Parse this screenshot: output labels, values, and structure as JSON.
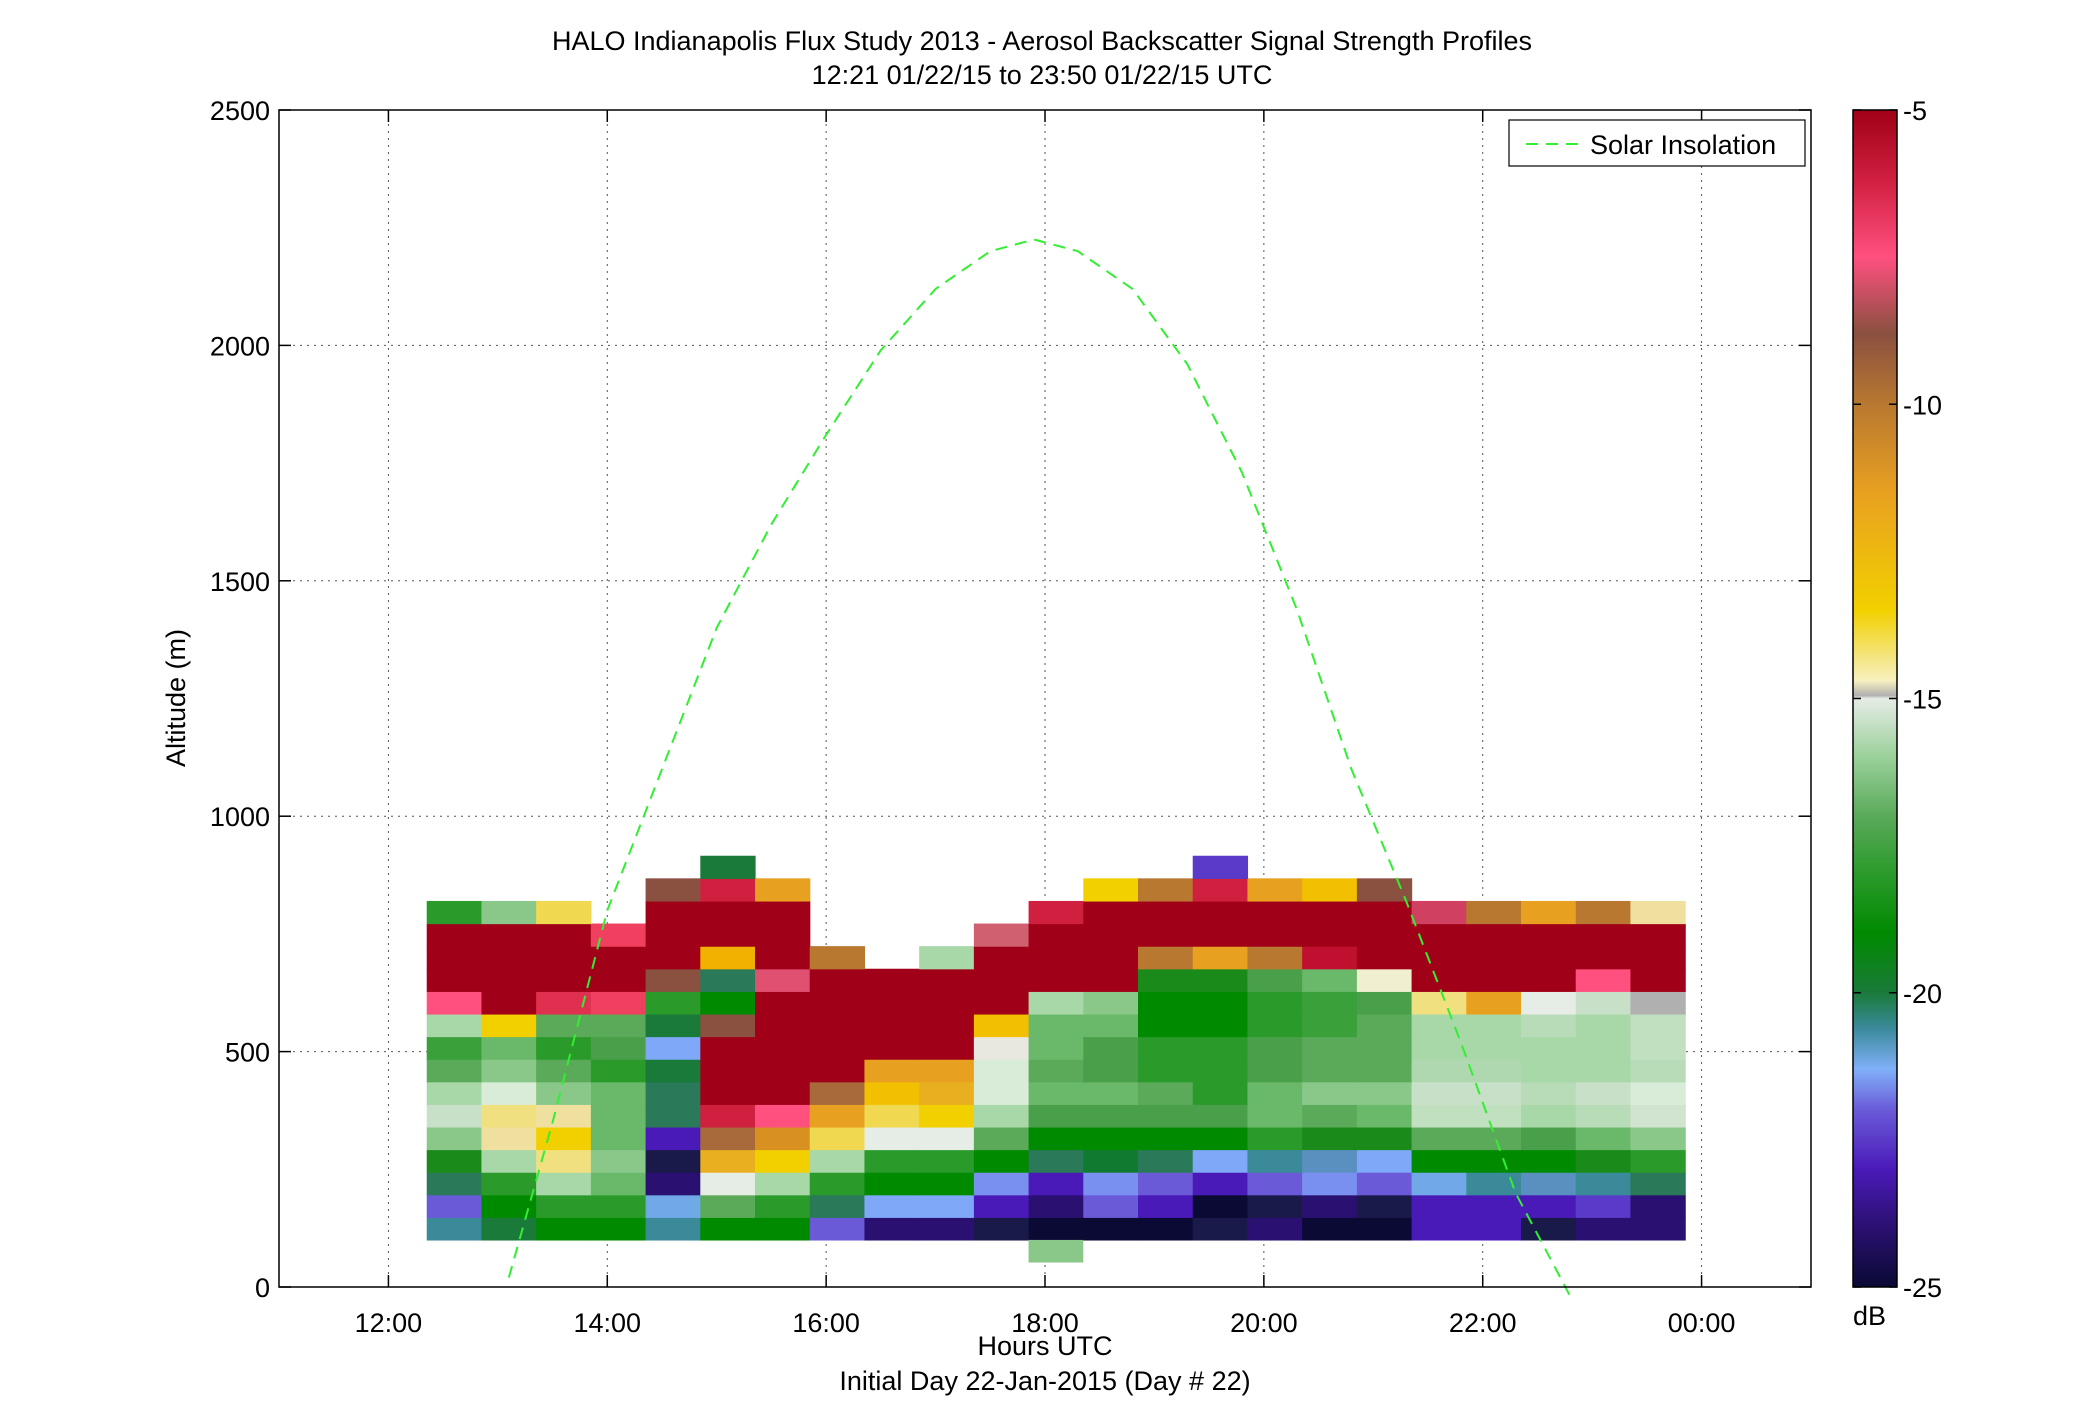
{
  "chart_data": {
    "type": "heatmap",
    "title": "HALO Indianapolis Flux Study 2013 - Aerosol Backscatter Signal Strength Profiles",
    "subtitle": "12:21 01/22/15 to 23:50 01/22/15  UTC",
    "xlabel": "Hours UTC",
    "xlabel2": "Initial Day 22-Jan-2015 (Day # 22)",
    "ylabel": "Altitude (m)",
    "xlim": [
      11,
      25
    ],
    "ylim": [
      0,
      2500
    ],
    "x_ticks": [
      12,
      14,
      16,
      18,
      20,
      22,
      24
    ],
    "x_tick_labels": [
      "12:00",
      "14:00",
      "16:00",
      "18:00",
      "20:00",
      "22:00",
      "00:00"
    ],
    "y_ticks": [
      0,
      500,
      1000,
      1500,
      2000,
      2500
    ],
    "y_tick_labels": [
      "0",
      "500",
      "1000",
      "1500",
      "2000",
      "2500"
    ],
    "grid": true,
    "legend": {
      "position": "top-right",
      "entries": [
        {
          "label": "Solar Insolation",
          "style": "dashed",
          "color": "#33ee33"
        }
      ]
    },
    "colorbar": {
      "label": "dB",
      "range": [
        -25,
        -5
      ],
      "tick_values": [
        -5,
        -10,
        -15,
        -20,
        -25
      ],
      "tick_labels": [
        "-5",
        "-10",
        "-15",
        "-20",
        "-25"
      ],
      "stops": [
        {
          "v": -25,
          "c": "#0a0a35"
        },
        {
          "v": -24,
          "c": "#2a1070"
        },
        {
          "v": -23,
          "c": "#4a1ab8"
        },
        {
          "v": -22,
          "c": "#6a5ad8"
        },
        {
          "v": -21.3,
          "c": "#80b0f8"
        },
        {
          "v": -20.6,
          "c": "#3a8a9a"
        },
        {
          "v": -20,
          "c": "#1a7a3a"
        },
        {
          "v": -19,
          "c": "#008a00"
        },
        {
          "v": -18,
          "c": "#2a9a2a"
        },
        {
          "v": -17,
          "c": "#5aaa5a"
        },
        {
          "v": -16,
          "c": "#9ad09a"
        },
        {
          "v": -15,
          "c": "#e6ece6"
        },
        {
          "v": -14.95,
          "c": "#b0b0b0"
        },
        {
          "v": -14.7,
          "c": "#f6f0c0"
        },
        {
          "v": -13.5,
          "c": "#f2d000"
        },
        {
          "v": -11.5,
          "c": "#e8a020"
        },
        {
          "v": -10,
          "c": "#b87830"
        },
        {
          "v": -8.8,
          "c": "#8a5040"
        },
        {
          "v": -7.5,
          "c": "#ff5080"
        },
        {
          "v": -6.2,
          "c": "#d02040"
        },
        {
          "v": -5,
          "c": "#a00018"
        }
      ]
    },
    "cells": {
      "x_start": 12.35,
      "dx": 0.5,
      "y_start": 100,
      "dy": 48,
      "n_columns": 23,
      "colors": [
        [
          "#3a8a9a",
          "#1a7a3a",
          "#008a00",
          "#008a00",
          "#3a8a9a",
          "#008a00",
          "#008a00",
          "#6a5ad8",
          "#2a1070",
          "#2a1070",
          "#1a1a4a",
          "#0a0a35",
          "#0a0a35",
          "#0a0a35",
          "#1a1a4a",
          "#2a1070",
          "#0a0a35",
          "#0a0a35",
          "#4a1ab8",
          "#4a1ab8",
          "#1a1a4a",
          "#2a1070",
          "#2a1070"
        ],
        [
          "#6a5ad8",
          "#008a00",
          "#2a9a2a",
          "#2a9a2a",
          "#70a8e8",
          "#5aaa5a",
          "#2a9a2a",
          "#2a7a5a",
          "#80a8f8",
          "#80a8f8",
          "#4a1ab8",
          "#2a1070",
          "#6a5ad8",
          "#4a1ab8",
          "#0a0a35",
          "#1a1a4a",
          "#2a1070",
          "#1a1a4a",
          "#4a1ab8",
          "#4a1ab8",
          "#4a1ab8",
          "#5a3ac8",
          "#2a1070"
        ],
        [
          "#2a7a5a",
          "#2a9a2a",
          "#a8d8a8",
          "#6ab86a",
          "#2a1070",
          "#e6ece6",
          "#a8d8a8",
          "#2a9a2a",
          "#008a00",
          "#008a00",
          "#7a90f0",
          "#4a1ab8",
          "#7a90f0",
          "#6a5ad8",
          "#4a1ab8",
          "#6a5ad8",
          "#7a90f0",
          "#6a5ad8",
          "#70a8e8",
          "#3a8a9a",
          "#5a90c0",
          "#3a8a9a",
          "#2a7a5a"
        ],
        [
          "#1a8a1a",
          "#a8d8a8",
          "#f0e080",
          "#8ac88a",
          "#1a1a4a",
          "#e8b020",
          "#f2d000",
          "#a8d8a8",
          "#2a9a2a",
          "#2a9a2a",
          "#008a00",
          "#2a7a5a",
          "#107a30",
          "#2a7a5a",
          "#80a8f8",
          "#3a8a9a",
          "#5a90c0",
          "#80a8f8",
          "#008a00",
          "#008a00",
          "#008a00",
          "#1a8a1a",
          "#2a9a2a"
        ],
        [
          "#8ac88a",
          "#f0e0a0",
          "#f2d000",
          "#6ab86a",
          "#4a1ab8",
          "#a86a3a",
          "#d89020",
          "#f0d850",
          "#e6ece6",
          "#e6ece6",
          "#5aaa5a",
          "#008a00",
          "#008a00",
          "#008a00",
          "#008a00",
          "#2a9a2a",
          "#1a8a1a",
          "#1a8a1a",
          "#5aaa5a",
          "#5aaa5a",
          "#4aa04a",
          "#6ab86a",
          "#8ac88a"
        ],
        [
          "#c8e0c8",
          "#f0e080",
          "#f0e0a0",
          "#6ab86a",
          "#2a7a5a",
          "#d02040",
          "#ff5080",
          "#e8a020",
          "#f0d850",
          "#f2d000",
          "#a8d8a8",
          "#4aa04a",
          "#4aa04a",
          "#4aa04a",
          "#4aa04a",
          "#6ab86a",
          "#5aaa5a",
          "#6ab86a",
          "#c0e0c0",
          "#c0e0c0",
          "#a8d8a8",
          "#b8dcb8",
          "#d0e4d0"
        ],
        [
          "#a8d8a8",
          "#d8ecd8",
          "#8ac88a",
          "#6ab86a",
          "#2a7a5a",
          "#a00018",
          "#a00018",
          "#a86a3a",
          "#f2c000",
          "#e8b020",
          "#d8ecd8",
          "#6ab86a",
          "#6ab86a",
          "#5aaa5a",
          "#2a9a2a",
          "#6ab86a",
          "#8ac88a",
          "#8ac88a",
          "#c8e0c8",
          "#c8e0c8",
          "#b8dcb8",
          "#c8e0c8",
          "#d8ecd8"
        ],
        [
          "#5aaa5a",
          "#8ac88a",
          "#5aaa5a",
          "#2a9a2a",
          "#1a7a3a",
          "#a00018",
          "#a00018",
          "#a00018",
          "#e8a020",
          "#e8a020",
          "#d8ecd8",
          "#5aaa5a",
          "#4aa04a",
          "#2a9a2a",
          "#2a9a2a",
          "#4aa04a",
          "#5aaa5a",
          "#5aaa5a",
          "#b0d8b0",
          "#b0d8b0",
          "#a8d8a8",
          "#a8d8a8",
          "#b8dcb8"
        ],
        [
          "#3aa03a",
          "#6ab86a",
          "#2a9a2a",
          "#4aa04a",
          "#80a8f8",
          "#a00018",
          "#a00018",
          "#a00018",
          "#a00018",
          "#a00018",
          "#e8e8e0",
          "#6ab86a",
          "#4aa04a",
          "#2a9a2a",
          "#2a9a2a",
          "#4aa04a",
          "#5aaa5a",
          "#5aaa5a",
          "#a8d8a8",
          "#a8d8a8",
          "#a8d8a8",
          "#a8d8a8",
          "#c0e0c0"
        ],
        [
          "#a8d8a8",
          "#f2d000",
          "#5aaa5a",
          "#5aaa5a",
          "#1a7a3a",
          "#8a5040",
          "#a00018",
          "#a00018",
          "#a00018",
          "#a00018",
          "#f2c000",
          "#6ab86a",
          "#6ab86a",
          "#008a00",
          "#008a00",
          "#2a9a2a",
          "#3aa03a",
          "#5aaa5a",
          "#a8d8a8",
          "#a8d8a8",
          "#b8dcb8",
          "#a8d8a8",
          "#c0e0c0"
        ],
        [
          "#ff5080",
          "#a00018",
          "#e03050",
          "#f04060",
          "#2a9a2a",
          "#008a00",
          "#a00018",
          "#a00018",
          "#a00018",
          "#a00018",
          "#a00018",
          "#a8d8a8",
          "#8ac88a",
          "#008a00",
          "#008a00",
          "#2a9a2a",
          "#3aa03a",
          "#4aa04a",
          "#f0e080",
          "#e8a020",
          "#e6ece6",
          "#c8e0c8",
          "#b0b0b0"
        ],
        [
          "#a00018",
          "#a00018",
          "#a00018",
          "#a00018",
          "#8a5040",
          "#2a7a5a",
          "#e05070",
          "#a00018",
          "#a00018",
          "#a00018",
          "#a00018",
          "#a00018",
          "#a00018",
          "#1a8a1a",
          "#1a8a1a",
          "#4aa04a",
          "#6ab86a",
          "#f0f0d0",
          "#a00018",
          "#a00018",
          "#a00018",
          "#ff5080",
          "#a00018"
        ],
        [
          "#a00018",
          "#a00018",
          "#a00018",
          "#a00018",
          "#a00018",
          "#f2b000",
          "#a00018",
          "#b87830",
          "null",
          "#a8d8a8",
          "#a00018",
          "#a00018",
          "#a00018",
          "#b87830",
          "#e8a020",
          "#b87830",
          "#c01030",
          "#a00018",
          "#a00018",
          "#a00018",
          "#a00018",
          "#a00018",
          "#a00018"
        ],
        [
          "#a00018",
          "#a00018",
          "#a00018",
          "#f04060",
          "#a00018",
          "#a00018",
          "#a00018",
          "null",
          "null",
          "null",
          "#d06070",
          "#a00018",
          "#a00018",
          "#a00018",
          "#a00018",
          "#a00018",
          "#a00018",
          "#a00018",
          "#a00018",
          "#a00018",
          "#a00018",
          "#a00018",
          "#a00018"
        ],
        [
          "#2a9a2a",
          "#8ac88a",
          "#f0d850",
          "null",
          "#a00018",
          "#a00018",
          "#a00018",
          "null",
          "null",
          "null",
          "null",
          "#d02040",
          "#a00018",
          "#a00018",
          "#a00018",
          "#a00018",
          "#a00018",
          "#a00018",
          "#d04060",
          "#b87830",
          "#e8a020",
          "#b87830",
          "#f0e0a0"
        ],
        [
          "null",
          "null",
          "null",
          "null",
          "#8a5040",
          "#d02040",
          "#e8a020",
          "null",
          "null",
          "null",
          "null",
          "null",
          "#f2d000",
          "#b87830",
          "#d02040",
          "#e8a020",
          "#f2c000",
          "#8a5040",
          "null",
          "null",
          "null",
          "null",
          "null"
        ],
        [
          "null",
          "null",
          "null",
          "null",
          "null",
          "#1a7a3a",
          "null",
          "null",
          "null",
          "null",
          "null",
          "null",
          "null",
          "null",
          "#5a3ac8",
          "null",
          "null",
          "null",
          "null",
          "null",
          "null",
          "null",
          "null"
        ]
      ],
      "extra": [
        {
          "x": 17.85,
          "y": 52,
          "w": 0.5,
          "h": 48,
          "c": "#8ac88a"
        }
      ]
    },
    "series": [
      {
        "name": "Solar Insolation",
        "style": "dashed",
        "color": "#33ee33",
        "x": [
          13.1,
          13.5,
          14.0,
          14.5,
          15.0,
          15.5,
          16.0,
          16.5,
          17.0,
          17.5,
          17.9,
          18.3,
          18.8,
          19.3,
          19.8,
          20.3,
          20.8,
          21.3,
          21.8,
          22.3,
          22.8
        ],
        "y": [
          20,
          350,
          800,
          1100,
          1400,
          1620,
          1810,
          1990,
          2120,
          2200,
          2225,
          2200,
          2120,
          1960,
          1730,
          1440,
          1100,
          820,
          520,
          200,
          -20
        ]
      }
    ]
  }
}
